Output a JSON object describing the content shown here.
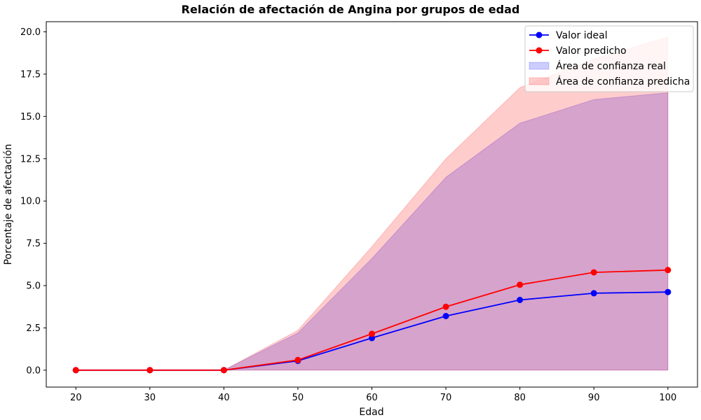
{
  "chart_data": {
    "type": "line",
    "title": "Relación de afectación de Angina por grupos de edad",
    "xlabel": "Edad",
    "ylabel": "Porcentaje de afectación",
    "x": [
      20,
      30,
      40,
      50,
      60,
      70,
      80,
      90,
      100
    ],
    "xlim": [
      16,
      104
    ],
    "ylim": [
      -1.0,
      20.6
    ],
    "x_ticks": [
      "20",
      "30",
      "40",
      "50",
      "60",
      "70",
      "80",
      "90",
      "100"
    ],
    "y_ticks": [
      "0.0",
      "2.5",
      "5.0",
      "7.5",
      "10.0",
      "12.5",
      "15.0",
      "17.5",
      "20.0"
    ],
    "grid": false,
    "legend_position": "top-right",
    "series": [
      {
        "name": "Valor ideal",
        "kind": "line",
        "color": "#0000ff",
        "values": [
          0,
          0,
          0,
          0.55,
          1.9,
          3.2,
          4.15,
          4.55,
          4.62
        ]
      },
      {
        "name": "Valor predicho",
        "kind": "line",
        "color": "#ff0000",
        "values": [
          0,
          0,
          0,
          0.6,
          2.15,
          3.75,
          5.05,
          5.78,
          5.92
        ]
      }
    ],
    "bands": [
      {
        "name": "Área de confianza real",
        "color": "#0000ff",
        "opacity": 0.2,
        "lower": [
          0,
          0,
          0,
          0,
          0,
          0,
          0,
          0,
          0
        ],
        "upper": [
          0,
          0,
          0,
          2.2,
          6.6,
          11.4,
          14.6,
          16.0,
          16.4
        ]
      },
      {
        "name": "Área de confianza predicha",
        "color": "#ff0000",
        "opacity": 0.2,
        "lower": [
          0,
          0,
          0,
          0,
          0,
          0,
          0,
          0,
          0
        ],
        "upper": [
          0,
          0,
          0,
          2.35,
          7.3,
          12.5,
          16.7,
          18.4,
          19.7
        ]
      }
    ]
  }
}
